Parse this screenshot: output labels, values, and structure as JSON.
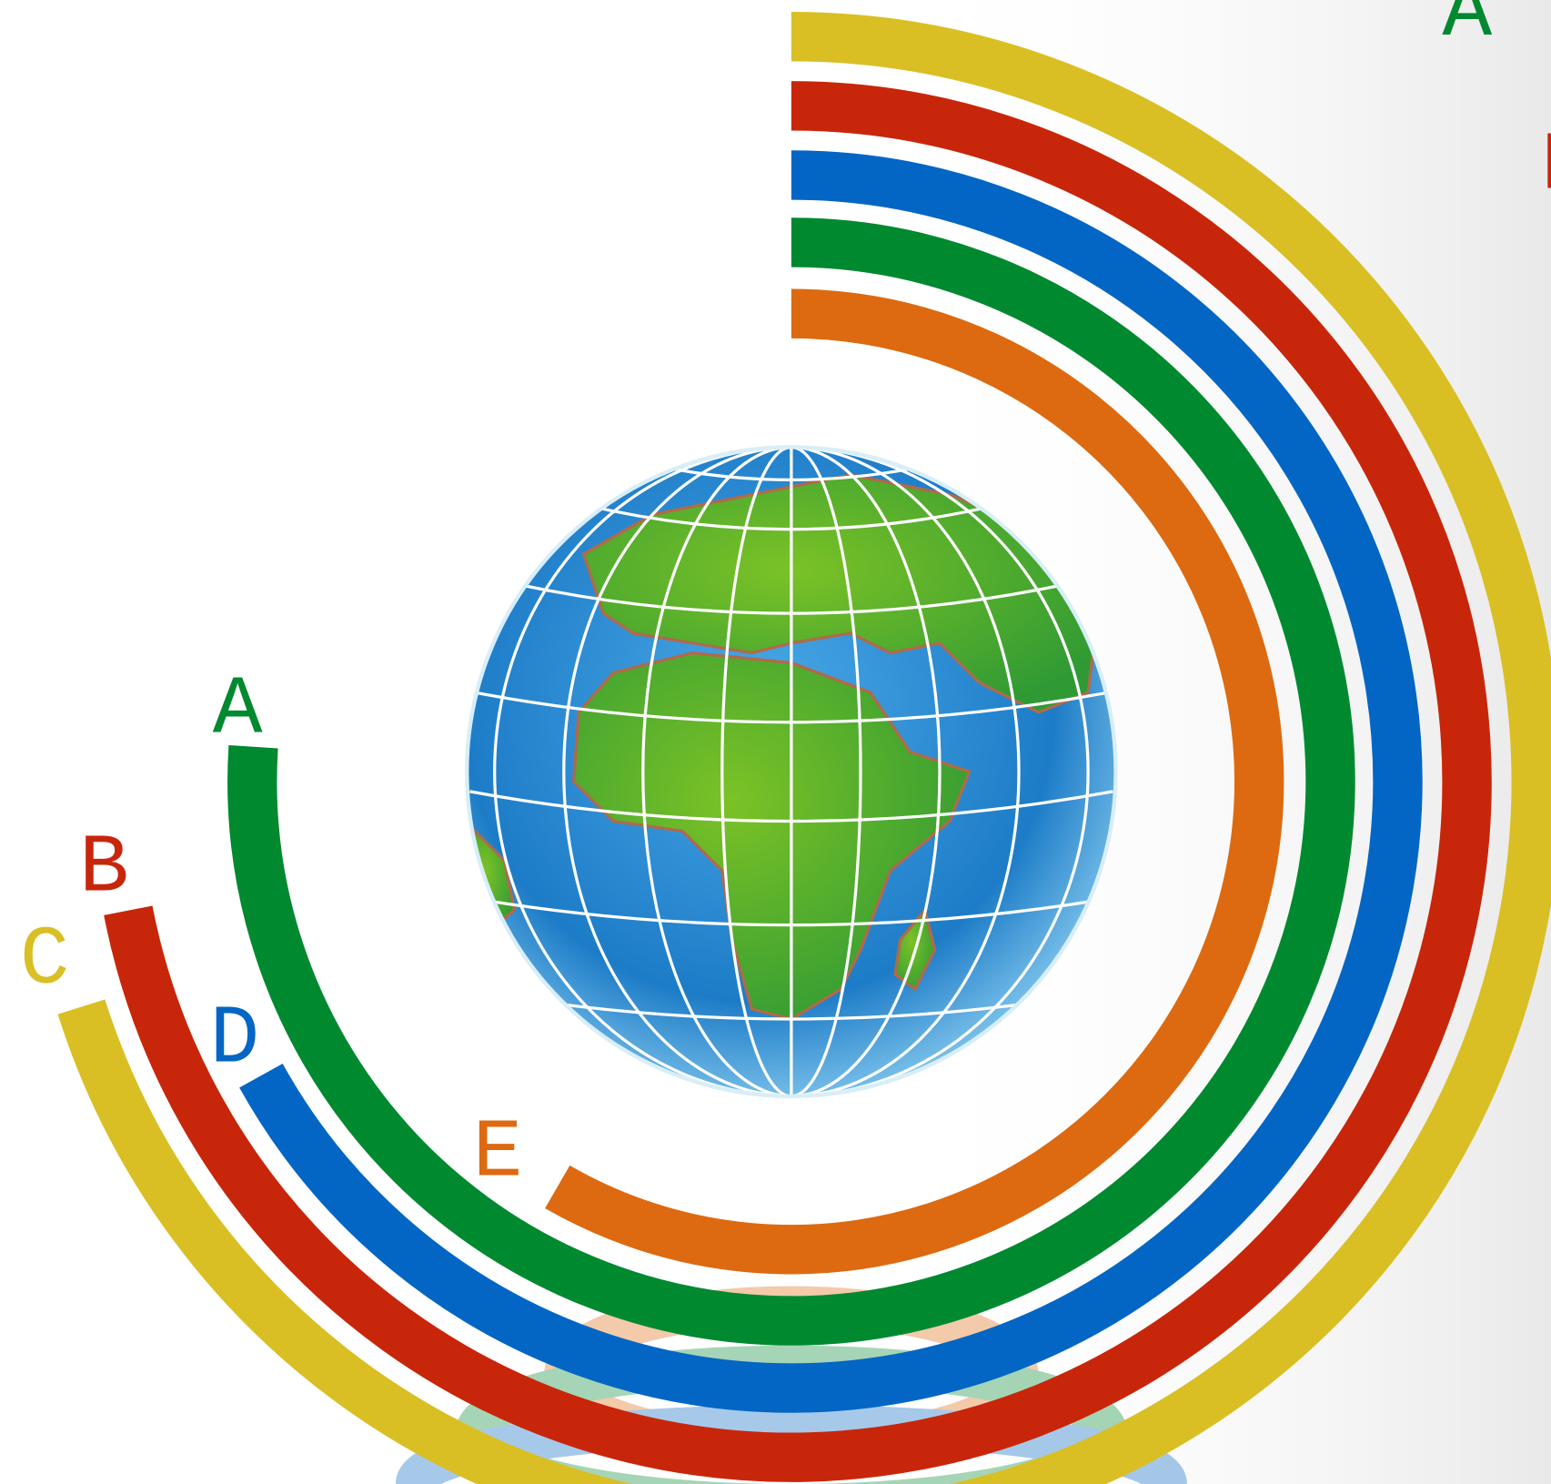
{
  "labels": [
    "A",
    "B",
    "C",
    "D",
    "E"
  ],
  "legend": [
    "A -",
    "B"
  ]
}
